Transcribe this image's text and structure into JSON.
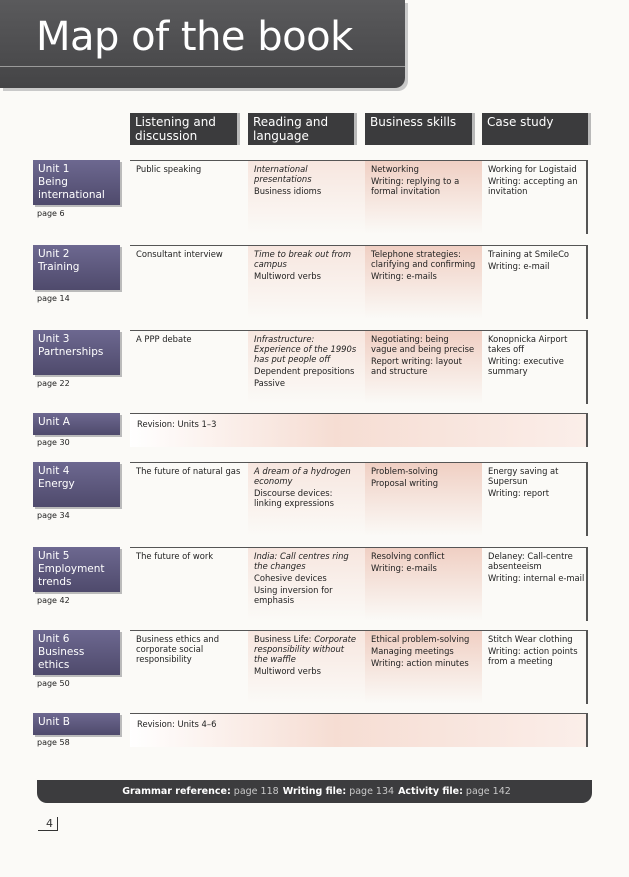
{
  "header": {
    "title": "Map of the book",
    "columns": [
      "Listening and discussion",
      "Reading and language",
      "Business skills",
      "Case study"
    ]
  },
  "rows": [
    {
      "unit": "Unit 1",
      "name": "Being international",
      "page": "page 6",
      "cells": [
        [
          {
            "text": "Public speaking"
          }
        ],
        [
          {
            "text": "International presentations",
            "style": "italic"
          },
          {
            "text": "Business idioms"
          }
        ],
        [
          {
            "text": "Networking"
          },
          {
            "text": "Writing: replying to a formal invitation"
          }
        ],
        [
          {
            "text": "Working for Logistaid"
          },
          {
            "text": "Writing: accepting an invitation"
          }
        ]
      ]
    },
    {
      "unit": "Unit 2",
      "name": "Training",
      "page": "page 14",
      "cells": [
        [
          {
            "text": "Consultant interview"
          }
        ],
        [
          {
            "text": "Time to break out from campus",
            "style": "italic"
          },
          {
            "text": "Multiword verbs"
          }
        ],
        [
          {
            "text": "Telephone strategies: clarifying and confirming"
          },
          {
            "text": "Writing: e-mails"
          }
        ],
        [
          {
            "text": "Training at SmileCo"
          },
          {
            "text": "Writing: e-mail"
          }
        ]
      ]
    },
    {
      "unit": "Unit 3",
      "name": "Partnerships",
      "page": "page 22",
      "cells": [
        [
          {
            "text": "A PPP debate"
          }
        ],
        [
          {
            "text": "Infrastructure: Experience of the 1990s has put people off",
            "style": "italic"
          },
          {
            "text": "Dependent prepositions"
          },
          {
            "text": "Passive"
          }
        ],
        [
          {
            "text": "Negotiating: being vague and being precise"
          },
          {
            "text": "Report writing: layout and structure"
          }
        ],
        [
          {
            "text": "Konopnicka Airport takes off"
          },
          {
            "text": "Writing: executive summary"
          }
        ]
      ]
    },
    {
      "unit": "Unit A",
      "page": "page 30",
      "revision": "Revision: Units 1–3"
    },
    {
      "unit": "Unit 4",
      "name": "Energy",
      "page": "page 34",
      "cells": [
        [
          {
            "text": "The future of natural gas"
          }
        ],
        [
          {
            "text": "A dream of a hydrogen economy",
            "style": "italic"
          },
          {
            "text": "Discourse devices: linking expressions"
          }
        ],
        [
          {
            "text": "Problem-solving"
          },
          {
            "text": "Proposal writing"
          }
        ],
        [
          {
            "text": "Energy saving at Supersun"
          },
          {
            "text": "Writing: report"
          }
        ]
      ]
    },
    {
      "unit": "Unit 5",
      "name": "Employment trends",
      "page": "page 42",
      "cells": [
        [
          {
            "text": "The future of work"
          }
        ],
        [
          {
            "text": "India: Call centres ring the changes",
            "style": "italic"
          },
          {
            "text": "Cohesive devices"
          },
          {
            "text": "Using inversion for emphasis"
          }
        ],
        [
          {
            "text": "Resolving conflict"
          },
          {
            "text": "Writing: e-mails"
          }
        ],
        [
          {
            "text": "Delaney: Call-centre absenteeism"
          },
          {
            "text": "Writing: internal e-mail"
          }
        ]
      ]
    },
    {
      "unit": "Unit 6",
      "name": "Business ethics",
      "page": "page 50",
      "cells": [
        [
          {
            "text": "Business ethics and corporate social responsibility"
          }
        ],
        [
          {
            "prefix": "Business Life:",
            "text": "Corporate responsibility without the waffle",
            "style": "italic"
          },
          {
            "text": "Multiword verbs"
          }
        ],
        [
          {
            "text": "Ethical problem-solving"
          },
          {
            "text": "Managing meetings"
          },
          {
            "text": "Writing: action minutes"
          }
        ],
        [
          {
            "text": "Stitch Wear clothing"
          },
          {
            "text": "Writing: action points from a meeting"
          }
        ]
      ]
    },
    {
      "unit": "Unit B",
      "page": "page 58",
      "revision": "Revision: Units 4–6"
    }
  ],
  "footer": {
    "items": [
      {
        "label": "Grammar reference:",
        "page": "page 118"
      },
      {
        "label": "Writing file:",
        "page": "page 134"
      },
      {
        "label": "Activity file:",
        "page": "page 142"
      }
    ],
    "page_number": "4"
  }
}
